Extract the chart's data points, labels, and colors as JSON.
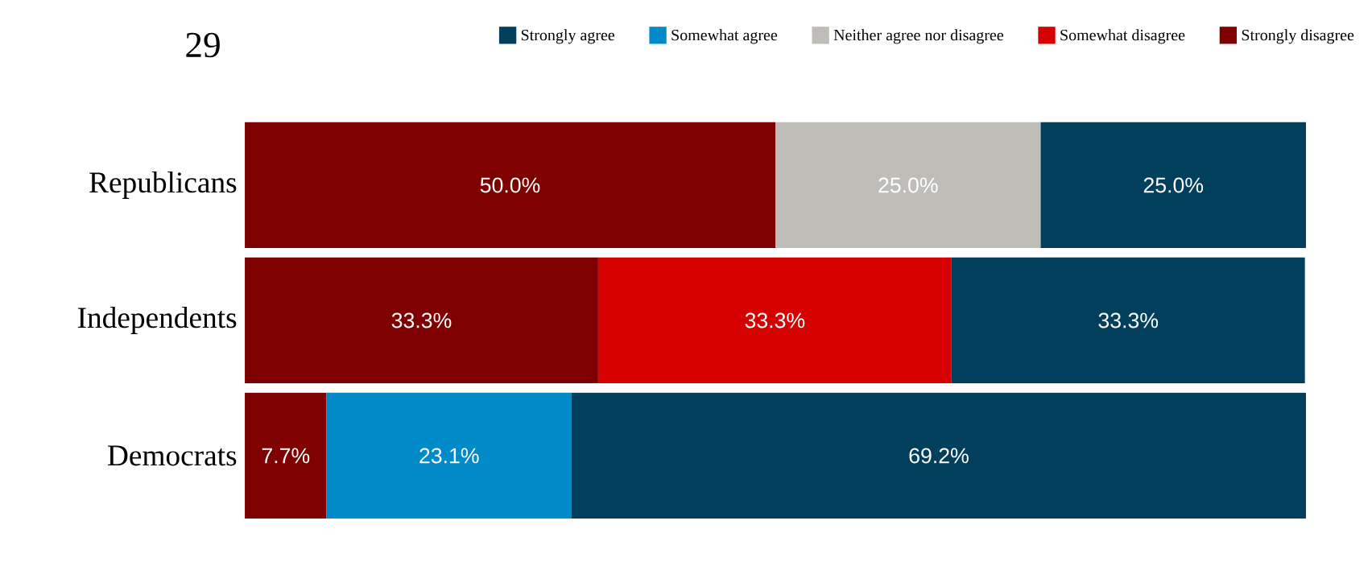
{
  "chart_data": {
    "type": "bar",
    "orientation": "horizontal",
    "stacked": true,
    "title": "29",
    "categories": [
      "Republicans",
      "Independents",
      "Democrats"
    ],
    "series": [
      {
        "name": "Strongly disagree",
        "color": "#7f0000",
        "values": [
          50.0,
          33.3,
          7.7
        ],
        "value_labels": [
          "50.0%",
          "33.3%",
          "7.7%"
        ]
      },
      {
        "name": "Somewhat disagree",
        "color": "#d60000",
        "values": [
          null,
          33.3,
          null
        ],
        "value_labels": [
          null,
          "33.3%",
          null
        ]
      },
      {
        "name": "Neither agree nor disagree",
        "color": "#bfbdb8",
        "values": [
          25.0,
          null,
          null
        ],
        "value_labels": [
          "25.0%",
          null,
          null
        ]
      },
      {
        "name": "Somewhat agree",
        "color": "#008bc8",
        "values": [
          null,
          null,
          23.1
        ],
        "value_labels": [
          null,
          null,
          "23.1%"
        ]
      },
      {
        "name": "Strongly agree",
        "color": "#023f5c",
        "values": [
          25.0,
          33.3,
          69.2
        ],
        "value_labels": [
          "25.0%",
          "33.3%",
          "69.2%"
        ]
      }
    ],
    "xlim": [
      0,
      100
    ],
    "tick_labels": "y",
    "legend": "top",
    "grid": false
  }
}
